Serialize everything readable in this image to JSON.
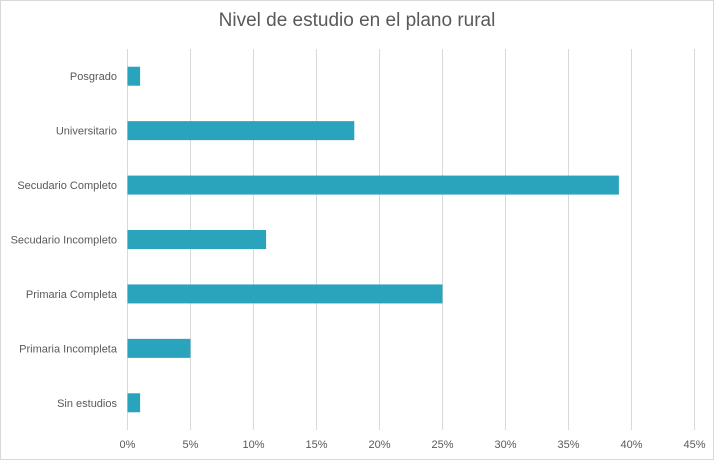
{
  "chart_data": {
    "type": "bar",
    "orientation": "horizontal",
    "title": "Nivel de estudio en el plano rural",
    "xlabel": "",
    "ylabel": "",
    "categories": [
      "Posgrado",
      "Universitario",
      "Secudario Completo",
      "Secudario Incompleto",
      "Primaria Completa",
      "Primaria Incompleta",
      "Sin estudios"
    ],
    "values": [
      1,
      18,
      39,
      11,
      25,
      5,
      1
    ],
    "value_unit": "%",
    "xlim": [
      0,
      45
    ],
    "x_ticks": [
      "0%",
      "5%",
      "10%",
      "15%",
      "20%",
      "25%",
      "30%",
      "35%",
      "40%",
      "45%"
    ],
    "grid": "vertical",
    "legend": "none",
    "bar_color": "#2aa3bd",
    "grid_color": "#d9d9d9",
    "text_color": "#595959"
  }
}
